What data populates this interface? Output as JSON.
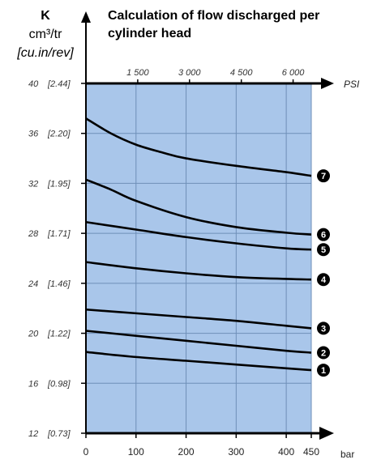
{
  "chart_data": {
    "type": "line",
    "title_line1": "Calculation of flow discharged per",
    "title_line2": "cylinder head",
    "ylabel_line1": "K",
    "ylabel_line2": "cm³/tr",
    "ylabel_line3": "[cu.in/rev]",
    "xlabel": "bar",
    "x2label": "PSI",
    "xlim": [
      0,
      450
    ],
    "ylim": [
      12,
      40
    ],
    "x_ticks": [
      {
        "value": 0,
        "label": "0"
      },
      {
        "value": 100,
        "label": "100"
      },
      {
        "value": 200,
        "label": "200"
      },
      {
        "value": 300,
        "label": "300"
      },
      {
        "value": 400,
        "label": "400"
      },
      {
        "value": 450,
        "label": "450"
      }
    ],
    "x2_ticks": [
      {
        "value": 103.4,
        "label": "1 500"
      },
      {
        "value": 206.8,
        "label": "3 000"
      },
      {
        "value": 310.3,
        "label": "4 500"
      },
      {
        "value": 413.7,
        "label": "6 000"
      }
    ],
    "y_ticks": [
      {
        "value": 40,
        "label": "40",
        "alt": "[2.44]"
      },
      {
        "value": 36,
        "label": "36",
        "alt": "[2.20]"
      },
      {
        "value": 32,
        "label": "32",
        "alt": "[1.95]"
      },
      {
        "value": 28,
        "label": "28",
        "alt": "[1.71]"
      },
      {
        "value": 24,
        "label": "24",
        "alt": "[1.46]"
      },
      {
        "value": 20,
        "label": "20",
        "alt": "[1.22]"
      },
      {
        "value": 16,
        "label": "16",
        "alt": "[0.98]"
      },
      {
        "value": 12,
        "label": "12",
        "alt": "[0.73]"
      }
    ],
    "grid": true,
    "colors": {
      "plot_bg": "#a9c6ea",
      "grid": "#6f8fb8",
      "line": "#000000"
    },
    "series": [
      {
        "marker": "1",
        "x": [
          0,
          100,
          200,
          300,
          400,
          450
        ],
        "y": [
          18.5,
          18.1,
          17.8,
          17.5,
          17.2,
          17.05
        ]
      },
      {
        "marker": "2",
        "x": [
          0,
          100,
          200,
          300,
          400,
          450
        ],
        "y": [
          20.2,
          19.8,
          19.4,
          19.0,
          18.6,
          18.45
        ]
      },
      {
        "marker": "3",
        "x": [
          0,
          100,
          200,
          300,
          400,
          450
        ],
        "y": [
          21.9,
          21.6,
          21.3,
          21.0,
          20.6,
          20.4
        ]
      },
      {
        "marker": "4",
        "x": [
          0,
          100,
          200,
          300,
          400,
          450
        ],
        "y": [
          25.7,
          25.2,
          24.8,
          24.5,
          24.35,
          24.3
        ]
      },
      {
        "marker": "5",
        "x": [
          0,
          100,
          200,
          300,
          400,
          450
        ],
        "y": [
          28.9,
          28.3,
          27.7,
          27.2,
          26.8,
          26.7
        ]
      },
      {
        "marker": "6",
        "x": [
          0,
          50,
          100,
          200,
          300,
          400,
          450
        ],
        "y": [
          32.3,
          31.5,
          30.6,
          29.3,
          28.5,
          28.05,
          27.9
        ]
      },
      {
        "marker": "7",
        "x": [
          0,
          50,
          100,
          150,
          200,
          300,
          400,
          450
        ],
        "y": [
          37.2,
          36.0,
          35.1,
          34.5,
          34.0,
          33.4,
          32.9,
          32.6
        ]
      }
    ]
  }
}
